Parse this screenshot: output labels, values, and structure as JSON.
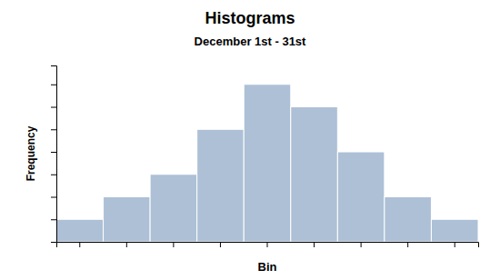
{
  "chart_data": {
    "type": "bar",
    "title": "Histograms",
    "subtitle": "December 1st - 31st",
    "x_label": "Bin",
    "y_label": "Frequency",
    "categories": [
      null,
      null,
      null,
      null,
      null,
      null,
      null,
      null,
      null
    ],
    "values": [
      1,
      2,
      3,
      5,
      7,
      6,
      4,
      2,
      1
    ],
    "color": "#adc0d6",
    "ylim": [
      0,
      7.84
    ],
    "yticks": [
      0,
      1,
      2,
      3,
      4,
      5,
      6,
      7
    ],
    "grid": false,
    "tick_labels": false
  }
}
